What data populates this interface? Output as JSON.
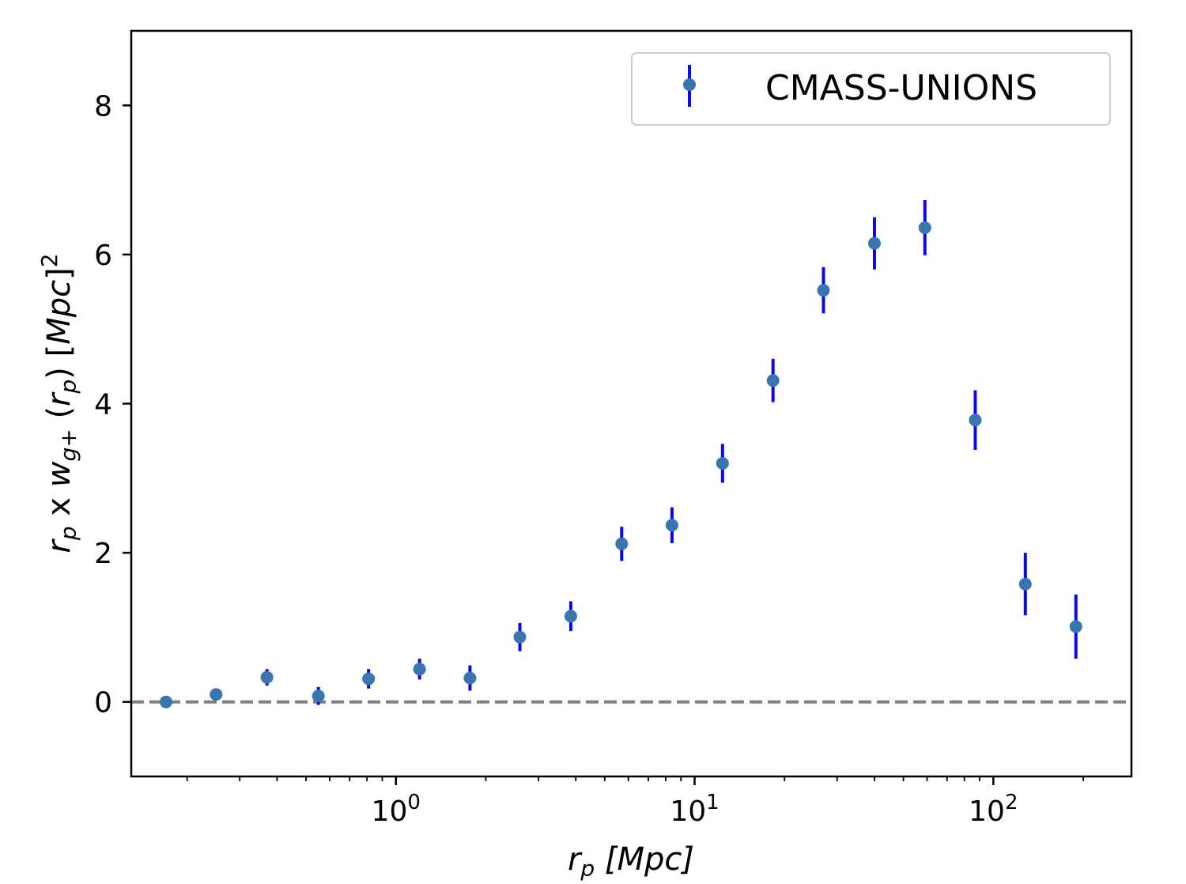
{
  "chart_data": {
    "type": "scatter",
    "xscale": "log",
    "xlim": [
      0.13,
      290
    ],
    "ylim": [
      -1.0,
      9.0
    ],
    "x_major_ticks": [
      1,
      10,
      100
    ],
    "x_tick_labels": [
      {
        "base": "10",
        "exp": "0"
      },
      {
        "base": "10",
        "exp": "1"
      },
      {
        "base": "10",
        "exp": "2"
      }
    ],
    "y_ticks": [
      0,
      2,
      4,
      6,
      8
    ],
    "y_tick_labels": [
      "0",
      "2",
      "4",
      "6",
      "8"
    ],
    "xlabel": {
      "main": "r",
      "sub": "p",
      "rest": " [Mpc]"
    },
    "ylabel": {
      "text": "r_p x w_g+ (r_p) [Mpc]^2"
    },
    "reference_line": {
      "y": 0,
      "style": "dashed",
      "color": "#808080"
    },
    "legend": {
      "position": "top-right",
      "entries": [
        "CMASS-UNIONS"
      ]
    },
    "series": [
      {
        "name": "CMASS-UNIONS",
        "marker_color": "#3a75b0",
        "errorbar_color": "#0a0ae8",
        "x": [
          0.17,
          0.25,
          0.37,
          0.55,
          0.81,
          1.2,
          1.77,
          2.6,
          3.85,
          5.7,
          8.4,
          12.4,
          18.3,
          27,
          40,
          59,
          87,
          128,
          189
        ],
        "y": [
          0.0,
          0.1,
          0.33,
          0.08,
          0.31,
          0.44,
          0.32,
          0.87,
          1.15,
          2.12,
          2.37,
          3.2,
          4.31,
          5.52,
          6.15,
          6.36,
          3.78,
          1.58,
          1.01
        ],
        "yerr": [
          0.03,
          0.06,
          0.11,
          0.12,
          0.13,
          0.14,
          0.17,
          0.19,
          0.2,
          0.23,
          0.24,
          0.26,
          0.29,
          0.31,
          0.35,
          0.37,
          0.4,
          0.42,
          0.43
        ]
      }
    ]
  }
}
